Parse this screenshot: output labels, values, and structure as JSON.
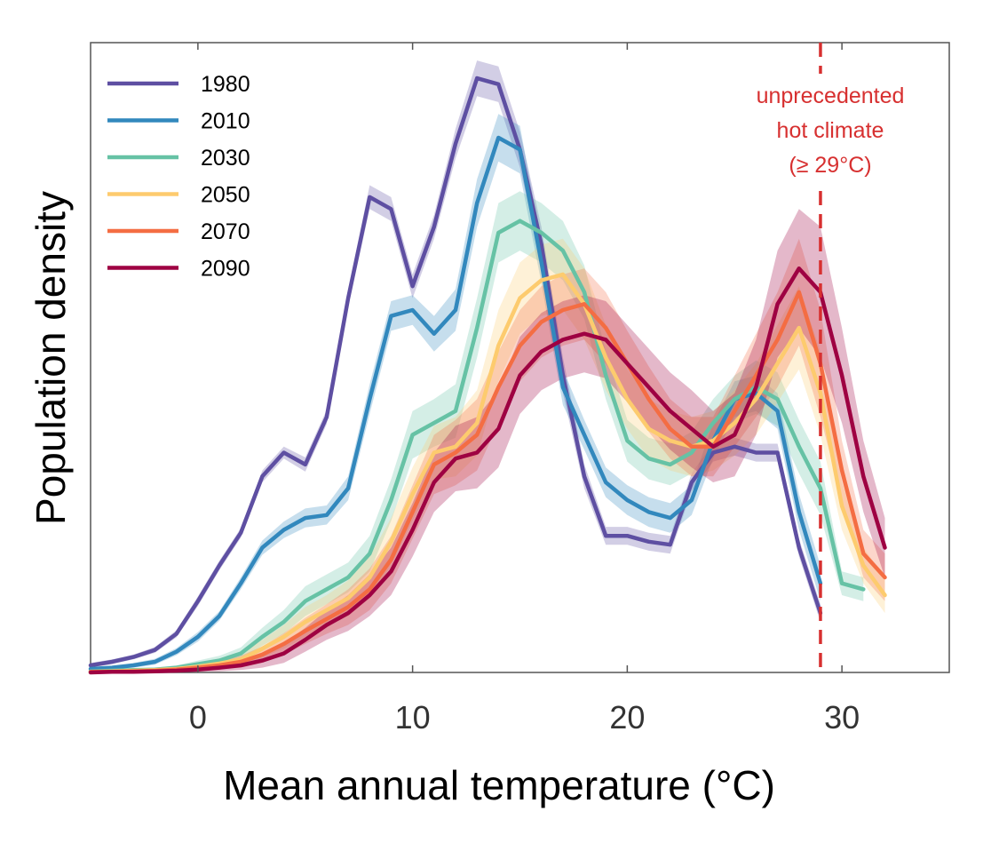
{
  "chart_data": {
    "type": "line",
    "xlabel": "Mean annual temperature (°C)",
    "ylabel": "Population density",
    "xlim": [
      -5,
      35
    ],
    "ylim": [
      0,
      1.06
    ],
    "xticks": [
      0,
      10,
      20,
      30
    ],
    "yticks_shown": false,
    "grid": false,
    "legend_position": "top-left",
    "annotation": {
      "x": 29,
      "lines": [
        "unprecedented",
        "hot climate",
        "(≥ 29°C)"
      ],
      "color": "#d73030"
    },
    "series": [
      {
        "name": "1980",
        "color": "#5e4fa2",
        "x": [
          -5,
          -4,
          -3,
          -2,
          -1,
          0,
          1,
          2,
          3,
          4,
          5,
          6,
          7,
          8,
          9,
          10,
          11,
          12,
          13,
          14,
          15,
          16,
          17,
          18,
          19,
          20,
          21,
          22,
          23,
          24,
          25,
          26,
          27,
          28,
          29
        ],
        "y": [
          0.012,
          0.018,
          0.026,
          0.038,
          0.065,
          0.12,
          0.18,
          0.235,
          0.33,
          0.37,
          0.35,
          0.43,
          0.63,
          0.8,
          0.78,
          0.65,
          0.75,
          0.89,
          1.0,
          0.99,
          0.88,
          0.72,
          0.5,
          0.33,
          0.23,
          0.23,
          0.22,
          0.215,
          0.32,
          0.37,
          0.38,
          0.37,
          0.37,
          0.21,
          0.1
        ],
        "band": [
          0.004,
          0.004,
          0.004,
          0.005,
          0.006,
          0.008,
          0.008,
          0.008,
          0.01,
          0.01,
          0.012,
          0.012,
          0.015,
          0.02,
          0.02,
          0.02,
          0.02,
          0.025,
          0.03,
          0.03,
          0.03,
          0.03,
          0.03,
          0.02,
          0.015,
          0.015,
          0.015,
          0.015,
          0.015,
          0.015,
          0.015,
          0.015,
          0.015,
          0.015,
          0.015
        ]
      },
      {
        "name": "2010",
        "color": "#3288bd",
        "x": [
          -5,
          -4,
          -3,
          -2,
          -1,
          0,
          1,
          2,
          3,
          4,
          5,
          6,
          7,
          8,
          9,
          10,
          11,
          12,
          13,
          14,
          15,
          16,
          17,
          18,
          19,
          20,
          21,
          22,
          23,
          24,
          25,
          26,
          27,
          28,
          29
        ],
        "y": [
          0.006,
          0.008,
          0.012,
          0.018,
          0.035,
          0.06,
          0.095,
          0.15,
          0.21,
          0.24,
          0.26,
          0.265,
          0.31,
          0.46,
          0.6,
          0.61,
          0.57,
          0.61,
          0.79,
          0.9,
          0.88,
          0.69,
          0.48,
          0.4,
          0.32,
          0.29,
          0.27,
          0.26,
          0.29,
          0.39,
          0.46,
          0.47,
          0.44,
          0.27,
          0.15
        ],
        "band": [
          0.003,
          0.003,
          0.004,
          0.005,
          0.006,
          0.008,
          0.008,
          0.01,
          0.012,
          0.014,
          0.016,
          0.016,
          0.02,
          0.025,
          0.025,
          0.025,
          0.03,
          0.035,
          0.04,
          0.04,
          0.04,
          0.035,
          0.03,
          0.025,
          0.025,
          0.025,
          0.025,
          0.025,
          0.025,
          0.03,
          0.03,
          0.03,
          0.03,
          0.03,
          0.03
        ]
      },
      {
        "name": "2030",
        "color": "#66c2a5",
        "x": [
          -5,
          -4,
          -3,
          -2,
          -1,
          0,
          1,
          2,
          3,
          4,
          5,
          6,
          7,
          8,
          9,
          10,
          11,
          12,
          13,
          14,
          15,
          16,
          17,
          18,
          19,
          20,
          21,
          22,
          23,
          24,
          25,
          26,
          27,
          28,
          29,
          30,
          31
        ],
        "y": [
          0.002,
          0.003,
          0.004,
          0.005,
          0.008,
          0.014,
          0.02,
          0.032,
          0.06,
          0.085,
          0.12,
          0.14,
          0.16,
          0.2,
          0.29,
          0.4,
          0.42,
          0.44,
          0.58,
          0.74,
          0.76,
          0.74,
          0.71,
          0.64,
          0.5,
          0.39,
          0.36,
          0.35,
          0.37,
          0.42,
          0.46,
          0.48,
          0.46,
          0.38,
          0.31,
          0.15,
          0.14
        ],
        "band": [
          0.002,
          0.002,
          0.003,
          0.003,
          0.004,
          0.006,
          0.008,
          0.01,
          0.015,
          0.02,
          0.025,
          0.025,
          0.025,
          0.03,
          0.035,
          0.04,
          0.04,
          0.045,
          0.05,
          0.05,
          0.05,
          0.05,
          0.05,
          0.045,
          0.04,
          0.035,
          0.035,
          0.035,
          0.035,
          0.04,
          0.04,
          0.045,
          0.045,
          0.045,
          0.045,
          0.02,
          0.02
        ]
      },
      {
        "name": "2050",
        "color": "#fdcb6e",
        "x": [
          -5,
          -4,
          -3,
          -2,
          -1,
          0,
          1,
          2,
          3,
          4,
          5,
          6,
          7,
          8,
          9,
          10,
          11,
          12,
          13,
          14,
          15,
          16,
          17,
          18,
          19,
          20,
          21,
          22,
          23,
          24,
          25,
          26,
          27,
          28,
          29,
          30,
          31,
          32
        ],
        "y": [
          0.001,
          0.002,
          0.003,
          0.004,
          0.006,
          0.01,
          0.015,
          0.022,
          0.04,
          0.06,
          0.085,
          0.105,
          0.125,
          0.16,
          0.22,
          0.3,
          0.37,
          0.38,
          0.42,
          0.55,
          0.63,
          0.66,
          0.67,
          0.62,
          0.53,
          0.46,
          0.41,
          0.39,
          0.38,
          0.39,
          0.42,
          0.46,
          0.52,
          0.58,
          0.47,
          0.28,
          0.18,
          0.13
        ],
        "band": [
          0.002,
          0.002,
          0.003,
          0.003,
          0.004,
          0.006,
          0.008,
          0.01,
          0.015,
          0.02,
          0.025,
          0.025,
          0.03,
          0.035,
          0.04,
          0.045,
          0.045,
          0.05,
          0.055,
          0.06,
          0.06,
          0.06,
          0.06,
          0.06,
          0.055,
          0.05,
          0.05,
          0.05,
          0.05,
          0.05,
          0.055,
          0.06,
          0.065,
          0.07,
          0.07,
          0.04,
          0.03,
          0.03
        ]
      },
      {
        "name": "2070",
        "color": "#f46d43",
        "x": [
          -5,
          -4,
          -3,
          -2,
          -1,
          0,
          1,
          2,
          3,
          4,
          5,
          6,
          7,
          8,
          9,
          10,
          11,
          12,
          13,
          14,
          15,
          16,
          17,
          18,
          19,
          20,
          21,
          22,
          23,
          24,
          25,
          26,
          27,
          28,
          29,
          30,
          31,
          32
        ],
        "y": [
          0.001,
          0.001,
          0.002,
          0.003,
          0.005,
          0.008,
          0.012,
          0.018,
          0.03,
          0.048,
          0.07,
          0.09,
          0.11,
          0.14,
          0.19,
          0.27,
          0.35,
          0.37,
          0.4,
          0.48,
          0.55,
          0.59,
          0.61,
          0.62,
          0.58,
          0.52,
          0.46,
          0.41,
          0.38,
          0.38,
          0.44,
          0.5,
          0.56,
          0.64,
          0.52,
          0.34,
          0.2,
          0.16
        ],
        "band": [
          0.002,
          0.002,
          0.002,
          0.003,
          0.004,
          0.005,
          0.007,
          0.01,
          0.014,
          0.018,
          0.022,
          0.025,
          0.03,
          0.035,
          0.04,
          0.045,
          0.05,
          0.055,
          0.06,
          0.06,
          0.06,
          0.06,
          0.06,
          0.06,
          0.06,
          0.055,
          0.055,
          0.05,
          0.05,
          0.05,
          0.06,
          0.07,
          0.08,
          0.09,
          0.09,
          0.05,
          0.04,
          0.04
        ]
      },
      {
        "name": "2090",
        "color": "#9e0142",
        "x": [
          -5,
          -4,
          -3,
          -2,
          -1,
          0,
          1,
          2,
          3,
          4,
          5,
          6,
          7,
          8,
          9,
          10,
          11,
          12,
          13,
          14,
          15,
          16,
          17,
          18,
          19,
          20,
          21,
          22,
          23,
          24,
          25,
          26,
          27,
          28,
          29,
          30,
          31,
          32
        ],
        "y": [
          0.0,
          0.001,
          0.001,
          0.002,
          0.003,
          0.005,
          0.008,
          0.012,
          0.02,
          0.032,
          0.055,
          0.08,
          0.1,
          0.13,
          0.17,
          0.24,
          0.32,
          0.36,
          0.37,
          0.41,
          0.5,
          0.54,
          0.56,
          0.57,
          0.56,
          0.52,
          0.48,
          0.44,
          0.41,
          0.38,
          0.4,
          0.48,
          0.62,
          0.68,
          0.64,
          0.5,
          0.33,
          0.21
        ],
        "band": [
          0.001,
          0.001,
          0.002,
          0.002,
          0.003,
          0.004,
          0.006,
          0.008,
          0.012,
          0.016,
          0.02,
          0.025,
          0.03,
          0.035,
          0.04,
          0.045,
          0.05,
          0.055,
          0.06,
          0.065,
          0.065,
          0.065,
          0.065,
          0.065,
          0.065,
          0.065,
          0.065,
          0.065,
          0.065,
          0.06,
          0.07,
          0.08,
          0.09,
          0.1,
          0.11,
          0.08,
          0.06,
          0.05
        ]
      }
    ]
  }
}
